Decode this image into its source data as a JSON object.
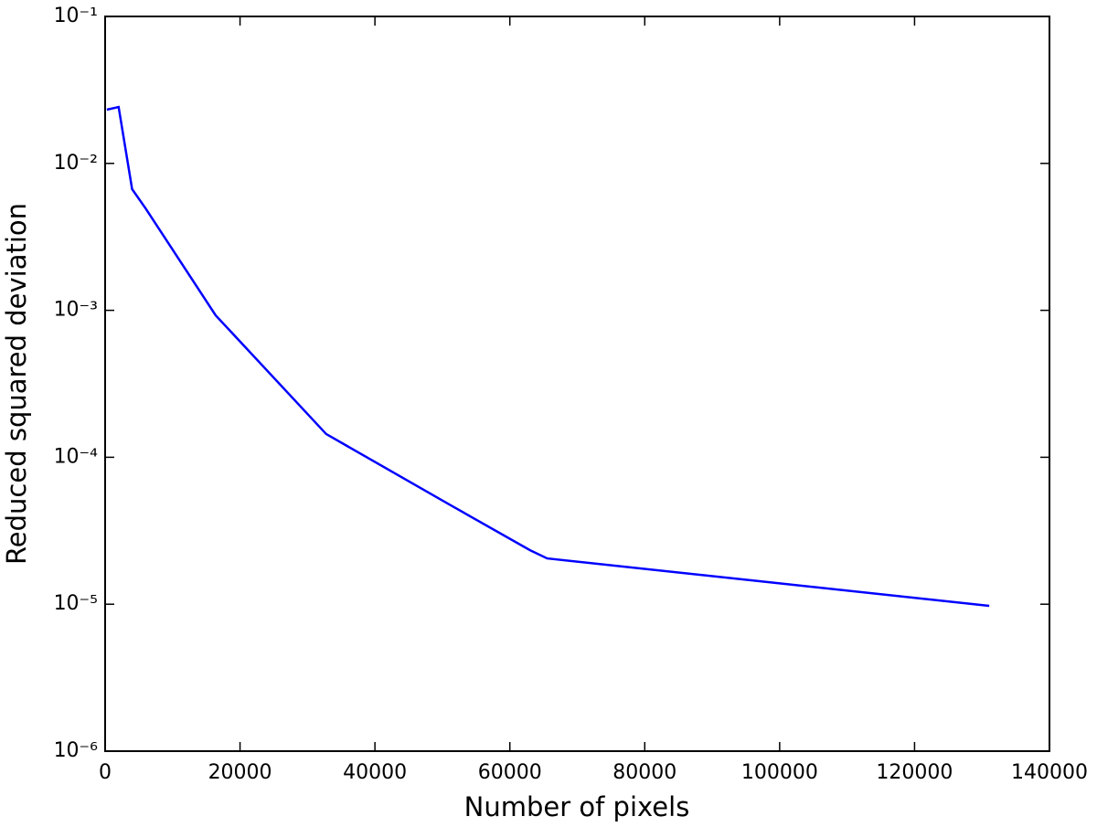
{
  "chart_data": {
    "type": "line",
    "x_label": "Number of pixels",
    "y_label": "Reduced squared deviation",
    "y_log": true,
    "xlim": [
      0,
      140000
    ],
    "ylim": [
      1e-06,
      0.1
    ],
    "xticks": [
      0,
      20000,
      40000,
      60000,
      80000,
      100000,
      120000,
      140000
    ],
    "yticks": [
      {
        "value": 1e-06,
        "label": "10⁻⁶"
      },
      {
        "value": 1e-05,
        "label": "10⁻⁵"
      },
      {
        "value": 0.0001,
        "label": "10⁻⁴"
      },
      {
        "value": 0.001,
        "label": "10⁻³"
      },
      {
        "value": 0.01,
        "label": "10⁻²"
      },
      {
        "value": 0.1,
        "label": "10⁻¹"
      }
    ],
    "grid": false,
    "series": [
      {
        "color": "#0000ff",
        "x": [
          256,
          2000,
          4000,
          6000,
          16384,
          32768,
          51000,
          63000,
          65536,
          131072
        ],
        "values": [
          0.0232,
          0.0242,
          0.00668,
          0.00494,
          0.000925,
          0.000144,
          4.78e-05,
          2.33e-05,
          2.05e-05,
          9.75e-06
        ]
      }
    ]
  }
}
